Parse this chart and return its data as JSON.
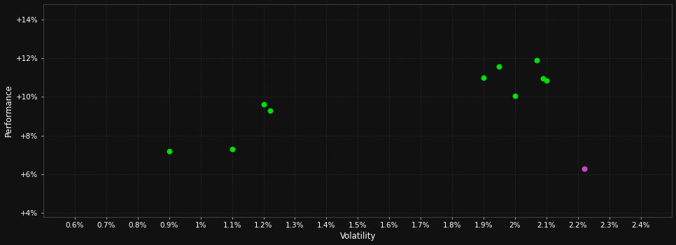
{
  "background_color": "#111111",
  "xlabel": "Volatility",
  "ylabel": "Performance",
  "xlim": [
    0.005,
    0.025
  ],
  "ylim": [
    0.038,
    0.148
  ],
  "xtick_vals": [
    0.006,
    0.007,
    0.008,
    0.009,
    0.01,
    0.011,
    0.012,
    0.013,
    0.014,
    0.015,
    0.016,
    0.017,
    0.018,
    0.019,
    0.02,
    0.021,
    0.022,
    0.023,
    0.024
  ],
  "ytick_vals": [
    0.04,
    0.06,
    0.08,
    0.1,
    0.12,
    0.14
  ],
  "green_x": [
    0.009,
    0.011,
    0.012,
    0.0122,
    0.019,
    0.0195,
    0.02,
    0.0207,
    0.0209,
    0.021
  ],
  "green_y": [
    0.072,
    0.073,
    0.096,
    0.093,
    0.11,
    0.1155,
    0.1005,
    0.119,
    0.1095,
    0.1085
  ],
  "magenta_x": [
    0.0222
  ],
  "magenta_y": [
    0.063
  ],
  "point_color_green": "#00dd00",
  "point_color_magenta": "#cc44cc",
  "point_size": 22,
  "grid_color": "#333333",
  "spine_color": "#555555",
  "tick_label_color": "#ffffff",
  "tick_fontsize": 7.5,
  "axis_label_fontsize": 8.5
}
